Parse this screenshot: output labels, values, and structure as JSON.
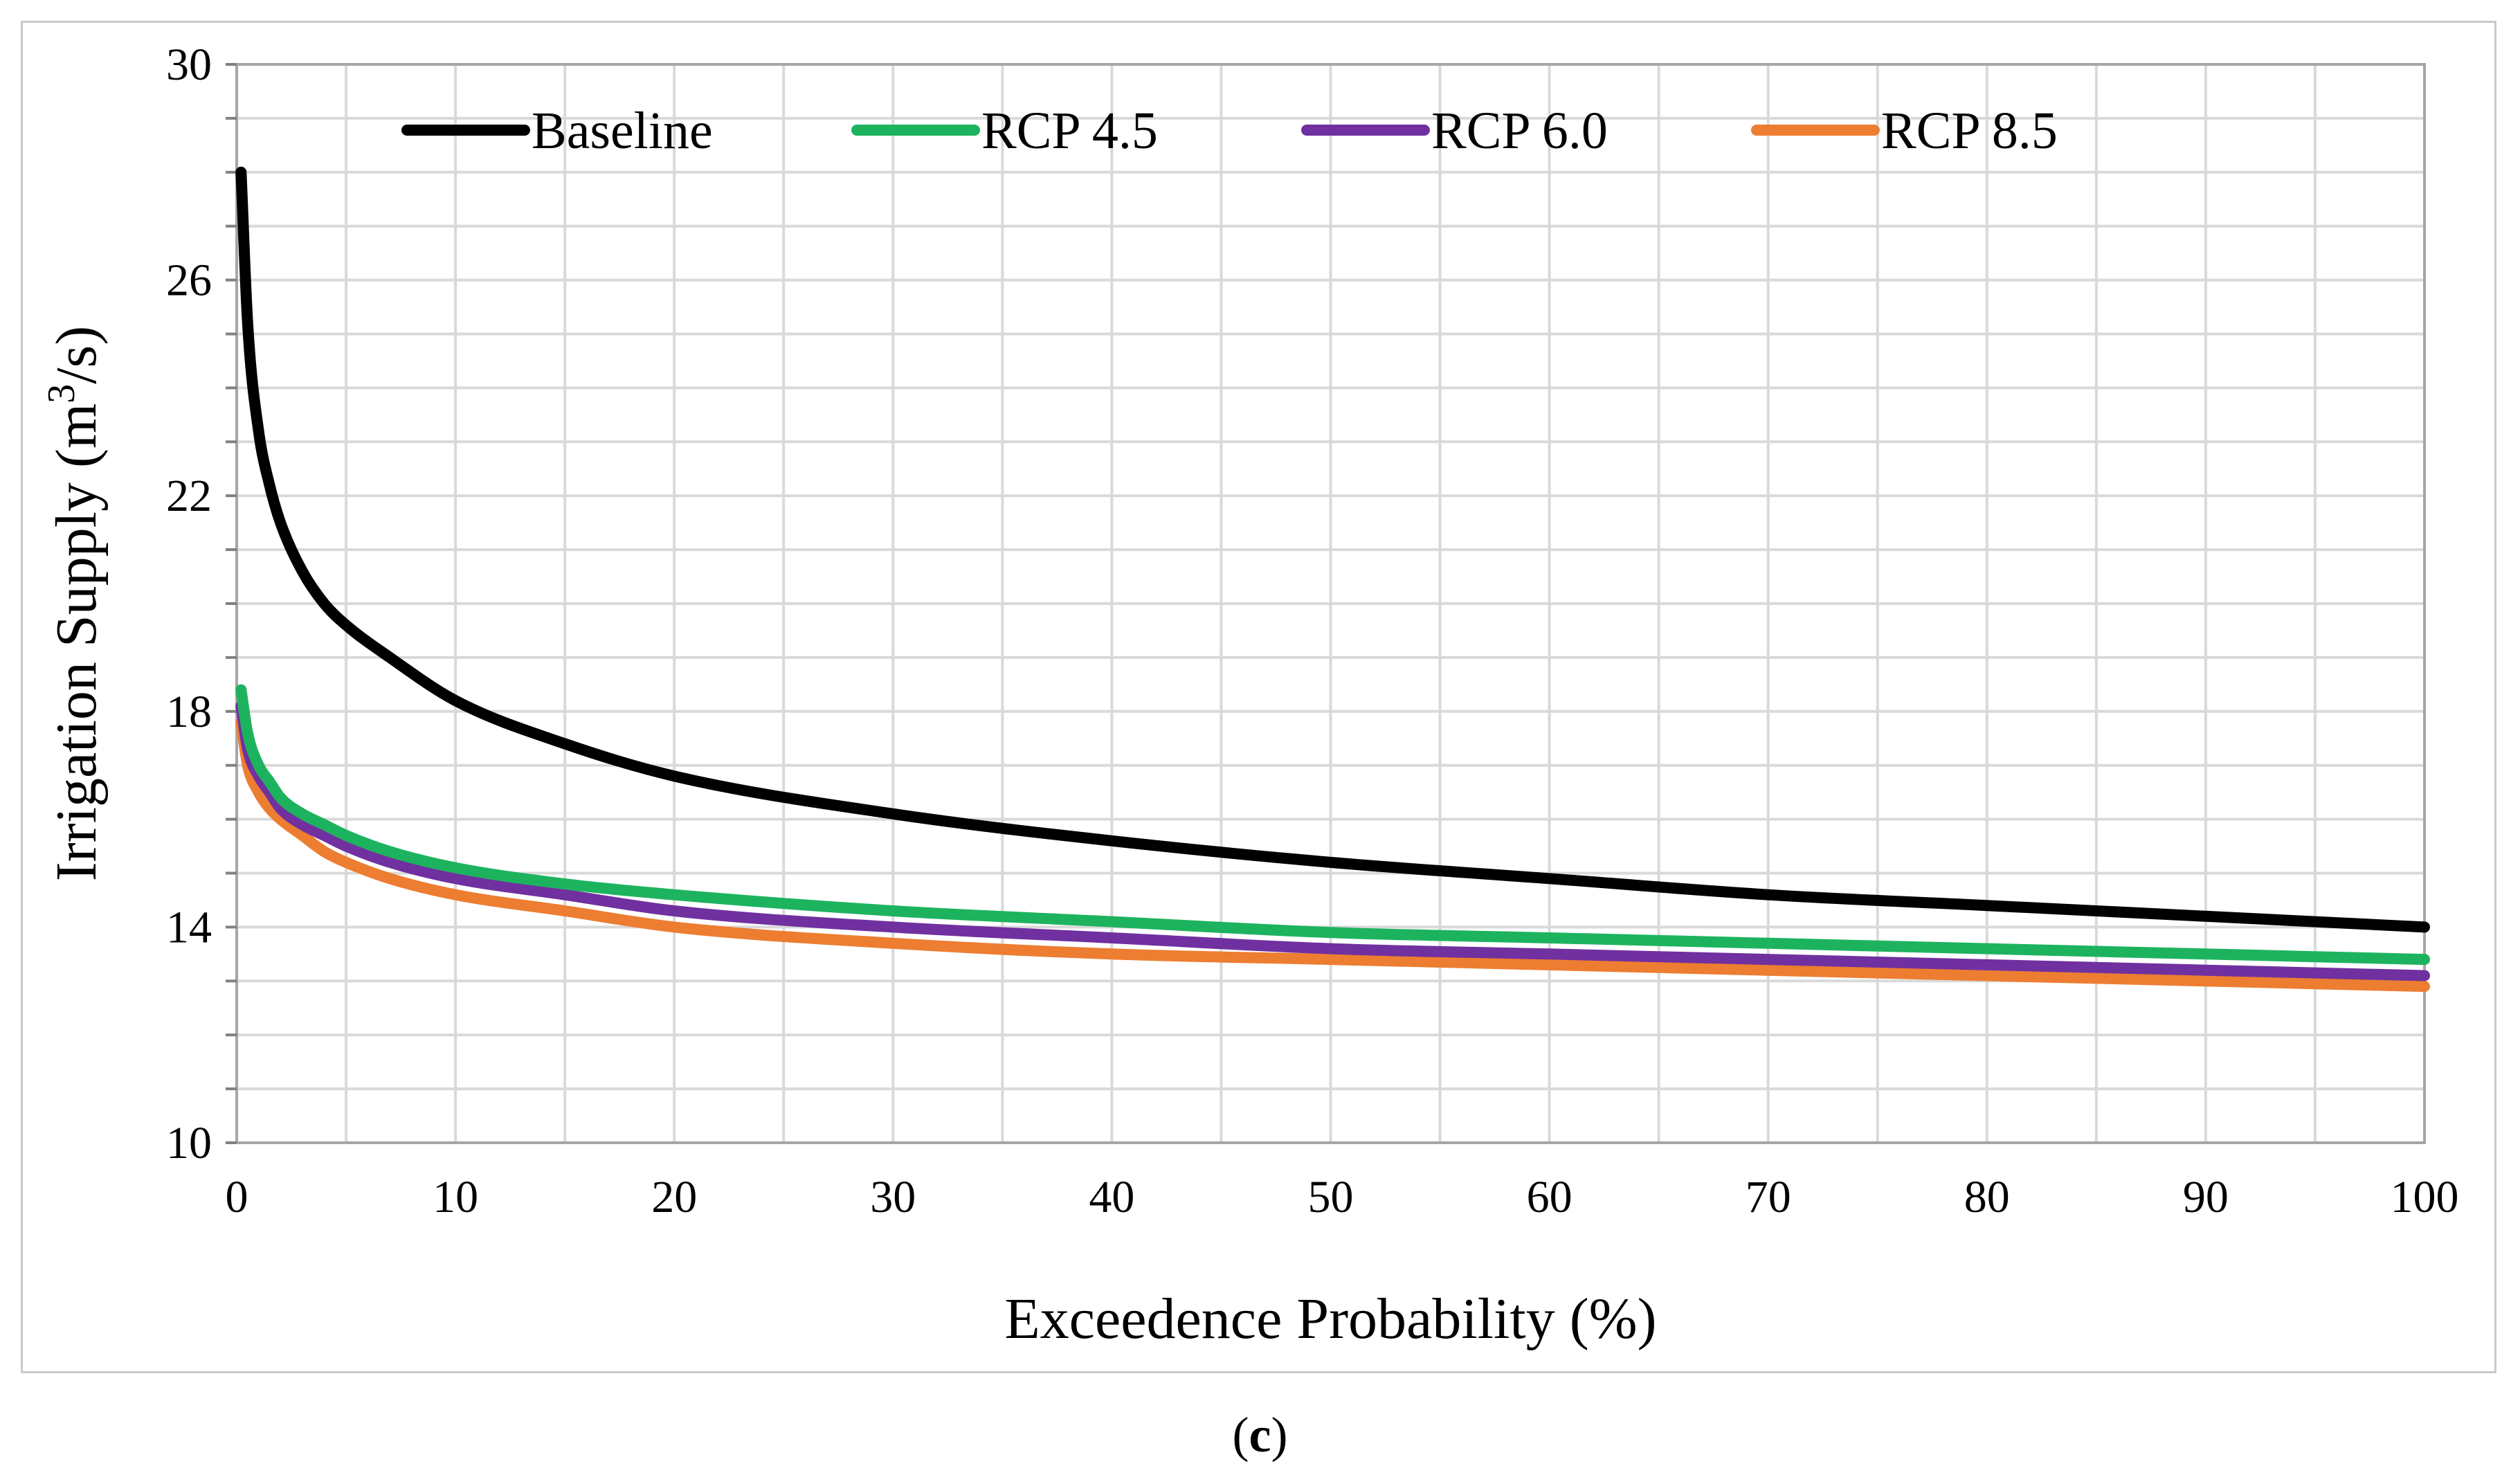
{
  "caption": {
    "open": "(",
    "letter": "c",
    "close": ")"
  },
  "chart_data": {
    "type": "line",
    "title": "",
    "xlabel": "Exceedence Probability (%)",
    "ylabel_main": "Irrigation Supply (m",
    "ylabel_sup": "3",
    "ylabel_end": "/s)",
    "xlim": [
      0,
      100
    ],
    "ylim": [
      10,
      30
    ],
    "x_ticks": [
      0,
      10,
      20,
      30,
      40,
      50,
      60,
      70,
      80,
      90,
      100
    ],
    "y_ticks": [
      10,
      14,
      18,
      22,
      26,
      30
    ],
    "y_minor_step": 1,
    "x_minor_step": 5,
    "grid": true,
    "legend_position": "top",
    "x": [
      0.2,
      0.5,
      1,
      1.5,
      2,
      3,
      4,
      5,
      7,
      10,
      15,
      20,
      30,
      40,
      50,
      60,
      70,
      80,
      90,
      100
    ],
    "series": [
      {
        "name": "Baseline",
        "color": "#000000",
        "values": [
          28.0,
          25.2,
          23.2,
          22.2,
          21.5,
          20.6,
          20.0,
          19.6,
          19.0,
          18.2,
          17.4,
          16.8,
          16.1,
          15.6,
          15.2,
          14.9,
          14.6,
          14.4,
          14.2,
          14.0
        ]
      },
      {
        "name": "RCP 4.5",
        "color": "#1db35e",
        "values": [
          18.4,
          17.6,
          17.0,
          16.7,
          16.4,
          16.1,
          15.9,
          15.7,
          15.4,
          15.1,
          14.8,
          14.6,
          14.3,
          14.1,
          13.9,
          13.8,
          13.7,
          13.6,
          13.5,
          13.4
        ]
      },
      {
        "name": "RCP 6.0",
        "color": "#7030a0",
        "values": [
          18.1,
          17.3,
          16.8,
          16.5,
          16.2,
          15.9,
          15.7,
          15.5,
          15.2,
          14.9,
          14.6,
          14.3,
          14.0,
          13.8,
          13.6,
          13.5,
          13.4,
          13.3,
          13.2,
          13.1
        ]
      },
      {
        "name": "RCP 8.5",
        "color": "#ed7d31",
        "values": [
          17.8,
          17.0,
          16.5,
          16.2,
          16.0,
          15.7,
          15.4,
          15.2,
          14.9,
          14.6,
          14.3,
          14.0,
          13.7,
          13.5,
          13.4,
          13.3,
          13.2,
          13.1,
          13.0,
          12.9
        ]
      }
    ]
  }
}
